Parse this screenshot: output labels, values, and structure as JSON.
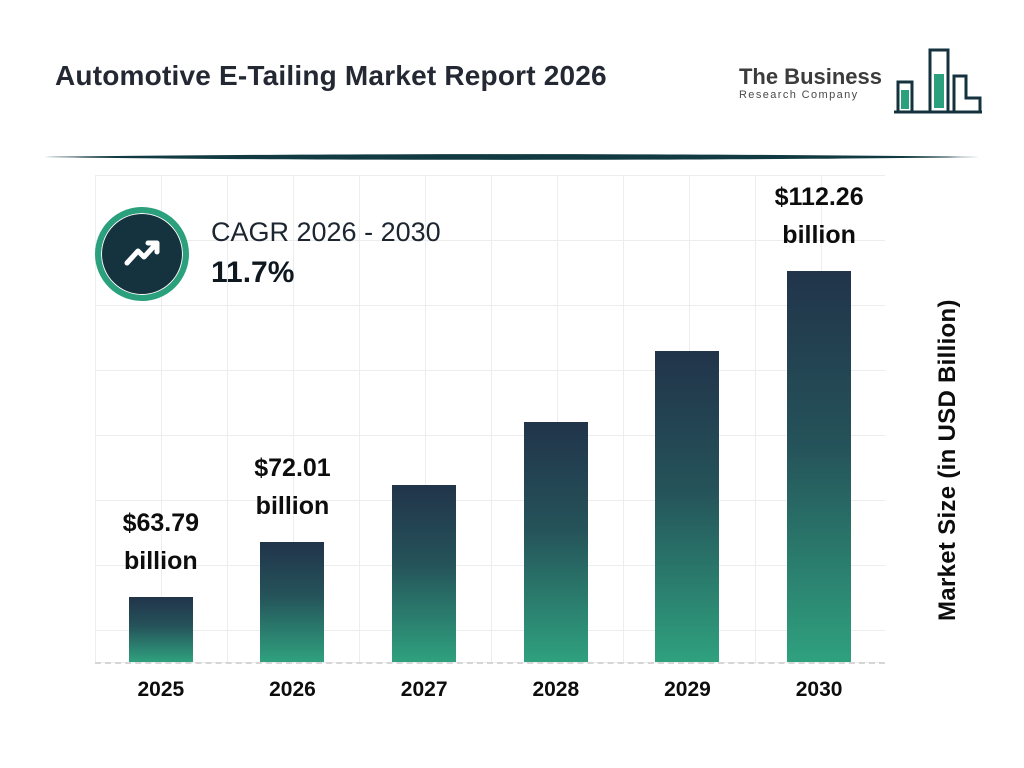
{
  "title": "Automotive E-Tailing Market Report 2026",
  "logo": {
    "name_line1": "The Business",
    "name_line2": "Research Company"
  },
  "cagr": {
    "label": "CAGR 2026 - 2030",
    "value": "11.7%"
  },
  "chart_data": {
    "type": "bar",
    "title": "Automotive E-Tailing Market Report 2026",
    "xlabel": "",
    "ylabel": "Market Size (in USD Billion)",
    "categories": [
      "2025",
      "2026",
      "2027",
      "2028",
      "2029",
      "2030"
    ],
    "values": [
      63.79,
      72.01,
      80.44,
      89.85,
      100.36,
      112.26
    ],
    "value_labeled_in_image": [
      true,
      true,
      false,
      false,
      false,
      true
    ],
    "grid": true,
    "ylim": [
      54,
      115
    ],
    "bars": [
      {
        "year": "2025",
        "value": 63.79,
        "label_value": "$63.79",
        "label_unit": "billion"
      },
      {
        "year": "2026",
        "value": 72.01,
        "label_value": "$72.01",
        "label_unit": "billion"
      },
      {
        "year": "2027",
        "value": 80.44
      },
      {
        "year": "2028",
        "value": 89.85
      },
      {
        "year": "2029",
        "value": 100.36
      },
      {
        "year": "2030",
        "value": 112.26,
        "label_value": "$112.26",
        "label_unit": "billion"
      }
    ]
  },
  "colors": {
    "accent_teal": "#2aa17c",
    "dark_navy": "#14333e",
    "bar_top": "#21344a",
    "bar_bottom": "#2fa17e",
    "title_text": "#232833",
    "grid_line": "#ededed"
  }
}
